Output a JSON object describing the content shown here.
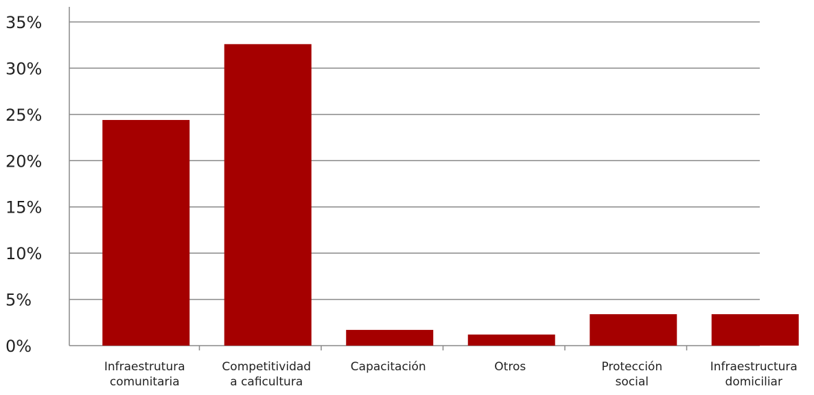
{
  "chart_data": {
    "type": "bar",
    "categories": [
      "Infraestrutura\ncomunitaria",
      "Competitividad\na caficultura",
      "Capacitación",
      "Otros",
      "Protección\nsocial",
      "Infraestructura\ndomiciliar"
    ],
    "values": [
      24.4,
      32.6,
      1.7,
      1.2,
      3.4,
      3.4
    ],
    "color": "#a50000",
    "ylim": [
      0,
      35
    ],
    "yticks": [
      {
        "value": 0,
        "label": "0%"
      },
      {
        "value": 5,
        "label": "5%"
      },
      {
        "value": 10,
        "label": "10%"
      },
      {
        "value": 15,
        "label": "15%"
      },
      {
        "value": 20,
        "label": "20%"
      },
      {
        "value": 25,
        "label": "25%"
      },
      {
        "value": 30,
        "label": "30%"
      },
      {
        "value": 35,
        "label": "35%"
      }
    ],
    "grid": true
  }
}
